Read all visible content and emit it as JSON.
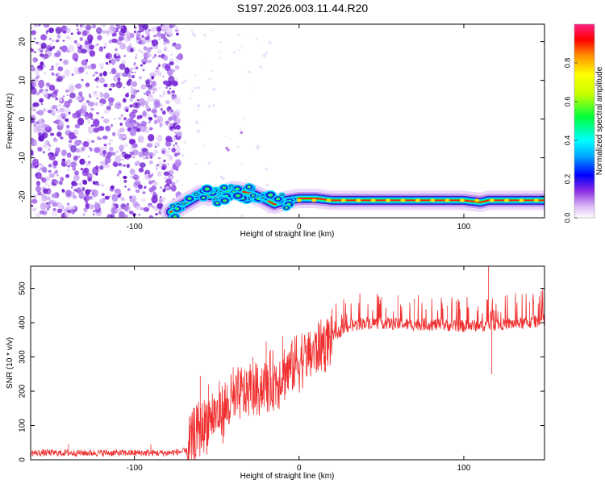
{
  "title": "S197.2026.003.11.44.R20",
  "colors": {
    "snr_line": "#f03030",
    "axis": "#000000",
    "colormap": [
      "#ffffff",
      "#8a2be2",
      "#3a1ec8",
      "#0050ff",
      "#00e6ff",
      "#00ff3c",
      "#c8ff00",
      "#ffc800",
      "#ff3c00",
      "#ff2050"
    ]
  },
  "chart_data": [
    {
      "type": "heatmap",
      "name": "spectrogram",
      "xlabel": "Height of straight line (km)",
      "ylabel": "Frequency (Hz)",
      "xlim": [
        -163,
        149
      ],
      "ylim": [
        -25.5,
        24.5
      ],
      "x_ticks": [
        -100,
        0,
        100
      ],
      "y_ticks": [
        -20,
        -10,
        0,
        10,
        20
      ],
      "noise_region_x": [
        -163,
        -75
      ],
      "signal_frequency_hz": -21,
      "signal_start_x": -78,
      "signal_path": [
        [
          -78,
          -24
        ],
        [
          -70,
          -22
        ],
        [
          -60,
          -19.5
        ],
        [
          -50,
          -20
        ],
        [
          -40,
          -18.5
        ],
        [
          -30,
          -19
        ],
        [
          -22,
          -20.5
        ],
        [
          -15,
          -22
        ],
        [
          -8,
          -21
        ],
        [
          0,
          -20.5
        ],
        [
          10,
          -20.5
        ],
        [
          20,
          -21
        ],
        [
          30,
          -21
        ],
        [
          60,
          -21
        ],
        [
          100,
          -21
        ],
        [
          110,
          -21.5
        ],
        [
          115,
          -21
        ],
        [
          149,
          -21
        ]
      ],
      "colorbar": {
        "label": "Normalized spectral amplitude",
        "range": [
          0.0,
          1.0
        ],
        "ticks": [
          "0.0",
          "0.2",
          "0.4",
          "0.6",
          "0.8"
        ]
      }
    },
    {
      "type": "line",
      "name": "snr",
      "xlabel": "Height of straight line (km)",
      "ylabel": "SNR (10 * v/v)",
      "xlim": [
        -163,
        149
      ],
      "ylim": [
        0,
        565
      ],
      "x_ticks": [
        -100,
        0,
        100
      ],
      "y_ticks": [
        0,
        100,
        200,
        300,
        400,
        500
      ],
      "series": [
        {
          "name": "SNR",
          "envelope_x": [
            -163,
            -120,
            -80,
            -68,
            -62,
            -55,
            -45,
            -35,
            -25,
            -15,
            -10,
            0,
            10,
            20,
            30,
            40,
            50,
            60,
            80,
            100,
            120,
            140,
            149
          ],
          "envelope_y": [
            20,
            20,
            20,
            25,
            80,
            120,
            150,
            190,
            210,
            230,
            250,
            290,
            320,
            360,
            390,
            400,
            400,
            395,
            395,
            390,
            395,
            400,
            410
          ],
          "spikes": [
            [
              -140,
              45
            ],
            [
              -90,
              45
            ],
            [
              -60,
              245
            ],
            [
              -55,
              220
            ],
            [
              -40,
              270
            ],
            [
              -28,
              300
            ],
            [
              -20,
              345
            ],
            [
              -10,
              360
            ],
            [
              -5,
              320
            ],
            [
              50,
              475
            ],
            [
              60,
              480
            ],
            [
              70,
              470
            ],
            [
              90,
              450
            ],
            [
              115,
              565
            ],
            [
              117,
              250
            ],
            [
              140,
              460
            ]
          ]
        }
      ]
    }
  ]
}
